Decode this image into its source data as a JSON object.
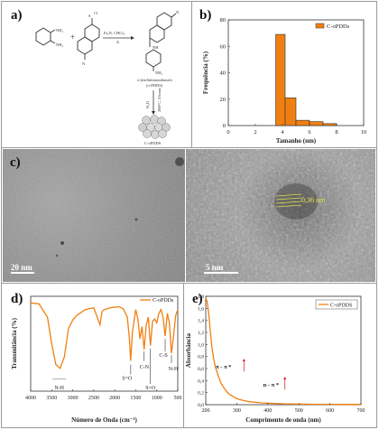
{
  "panels": {
    "a": "a)",
    "b": "b)",
    "c": "c)",
    "d": "d)",
    "e": "e)"
  },
  "scheme": {
    "reagent": "Et₃N, CHCl₃",
    "heat": "Δ",
    "intermediate_name_1": "o-fenilidiamindansila",
    "intermediate_name_2": "(o-PDDS)",
    "step2_a": "H₂O",
    "step2_b": "200°C, 4 horas",
    "product": "C-oPDDS"
  },
  "tem": {
    "scale_left": "20 nm",
    "scale_right": "5 nm",
    "lattice": "0,36 nm"
  },
  "ftir_labels": {
    "nh": "N-H",
    "so1": "S=O",
    "cn": "C-N",
    "so2": "S=O",
    "cs": "C-S",
    "nh2": "N-H"
  },
  "uv_labels": {
    "pp": "π - π *",
    "np": "n - π *"
  },
  "chart_data": [
    {
      "type": "bar",
      "panel": "b",
      "xlabel": "Tamanho (nm)",
      "ylabel": "Frequência (%)",
      "legend": "C-oPDDs",
      "legend_position": "top-right",
      "xlim": [
        0,
        10
      ],
      "ylim": [
        0,
        80
      ],
      "xticks": [
        "0",
        "2",
        "4",
        "6",
        "8",
        "10"
      ],
      "yticks": [
        "0",
        "20",
        "40",
        "60",
        "80"
      ],
      "bins": [
        [
          3.5,
          4.2
        ],
        [
          4.2,
          5.0
        ],
        [
          5.0,
          6.0
        ],
        [
          6.0,
          7.0
        ],
        [
          7.0,
          8.0
        ]
      ],
      "values": [
        69,
        21,
        4,
        3,
        1.5
      ],
      "color": "#f07f12"
    },
    {
      "type": "line",
      "panel": "d",
      "xlabel": "Número de Onda (cm⁻¹)",
      "ylabel": "Transmitância (%)",
      "legend": "C-oPDDs",
      "legend_position": "top-right",
      "xlim": [
        4000,
        500
      ],
      "ylim": [
        0,
        1
      ],
      "xticks": [
        "4000",
        "3500",
        "3000",
        "2500",
        "2000",
        "1500",
        "1000",
        "500"
      ],
      "x": [
        4000,
        3800,
        3600,
        3500,
        3400,
        3300,
        3200,
        3100,
        3000,
        2900,
        2700,
        2500,
        2350,
        2300,
        2250,
        2100,
        1900,
        1800,
        1700,
        1650,
        1620,
        1580,
        1500,
        1450,
        1400,
        1350,
        1300,
        1250,
        1200,
        1150,
        1100,
        1050,
        1000,
        950,
        900,
        850,
        800,
        750,
        700,
        650,
        600,
        550,
        500
      ],
      "y": [
        0.93,
        0.92,
        0.78,
        0.5,
        0.28,
        0.24,
        0.36,
        0.66,
        0.75,
        0.8,
        0.86,
        0.88,
        0.7,
        0.84,
        0.86,
        0.88,
        0.89,
        0.87,
        0.78,
        0.55,
        0.32,
        0.62,
        0.86,
        0.76,
        0.55,
        0.68,
        0.44,
        0.7,
        0.78,
        0.48,
        0.74,
        0.76,
        0.72,
        0.82,
        0.86,
        0.78,
        0.58,
        0.82,
        0.72,
        0.4,
        0.58,
        0.8,
        0.86
      ],
      "color": "#f07f12"
    },
    {
      "type": "line",
      "panel": "e",
      "xlabel": "Comprimento de onda (nm)",
      "ylabel": "Absorbância",
      "legend": "C-oPDDS",
      "legend_position": "top-right",
      "xlim": [
        200,
        700
      ],
      "ylim": [
        0,
        1.8
      ],
      "xticks": [
        "200",
        "300",
        "400",
        "500",
        "600",
        "700"
      ],
      "yticks": [
        "0,0",
        "0,2",
        "0,4",
        "0,6",
        "0,8",
        "1,0",
        "1,2",
        "1,4",
        "1,6",
        "1,8"
      ],
      "x": [
        200,
        205,
        210,
        215,
        220,
        225,
        230,
        240,
        250,
        260,
        270,
        280,
        290,
        300,
        320,
        340,
        360,
        380,
        400,
        450,
        500,
        550,
        600,
        650,
        700
      ],
      "y": [
        1.78,
        1.7,
        1.5,
        1.2,
        0.95,
        0.78,
        0.65,
        0.48,
        0.35,
        0.27,
        0.2,
        0.16,
        0.13,
        0.1,
        0.07,
        0.05,
        0.04,
        0.03,
        0.025,
        0.015,
        0.01,
        0.008,
        0.006,
        0.005,
        0.004
      ],
      "color": "#f07f12"
    }
  ]
}
